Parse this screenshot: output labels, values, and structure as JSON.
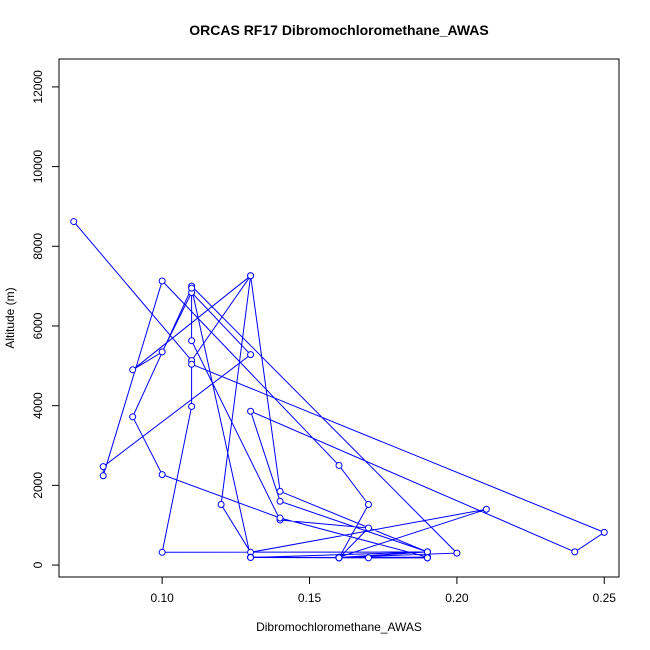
{
  "chart_data": {
    "type": "line",
    "title": "ORCAS RF17 Dibromochloromethane_AWAS",
    "xlabel": "Dibromochloromethane_AWAS",
    "ylabel": "Altitude (m)",
    "xlim": [
      0.065,
      0.255
    ],
    "ylim": [
      -300,
      12700
    ],
    "xticks": [
      "0.10",
      "0.15",
      "0.20",
      "0.25"
    ],
    "yticks": [
      "0",
      "2000",
      "4000",
      "6000",
      "8000",
      "10000",
      "12000"
    ],
    "grid": false,
    "series": [
      {
        "color": "#0000ff",
        "markers": "open-circle",
        "x": [
          0.07,
          0.11,
          0.13,
          0.09,
          0.1,
          0.11,
          0.13,
          0.08,
          0.08,
          0.1,
          0.16,
          0.17,
          0.16,
          0.19,
          0.19,
          0.16,
          0.16,
          0.21,
          0.13,
          0.12,
          0.13,
          0.14,
          0.19,
          0.1,
          0.11,
          0.11,
          0.25,
          0.24,
          0.13,
          0.14,
          0.19,
          0.16,
          0.17,
          0.14,
          0.11,
          0.11,
          0.2,
          0.16,
          0.13,
          0.11,
          0.09,
          0.1,
          0.14,
          0.19,
          0.16,
          0.19,
          0.13,
          0.17,
          0.19,
          0.16
        ],
        "y": [
          8620,
          5130,
          7260,
          4900,
          5350,
          6840,
          5280,
          2470,
          2240,
          7130,
          2500,
          1520,
          180,
          200,
          180,
          190,
          200,
          1400,
          320,
          1520,
          7260,
          1850,
          330,
          320,
          3980,
          5040,
          820,
          330,
          3860,
          1600,
          330,
          180,
          930,
          1130,
          5630,
          7000,
          300,
          190,
          200,
          6950,
          3720,
          2270,
          1180,
          200,
          190,
          330,
          190,
          180,
          180,
          180
        ]
      }
    ]
  }
}
